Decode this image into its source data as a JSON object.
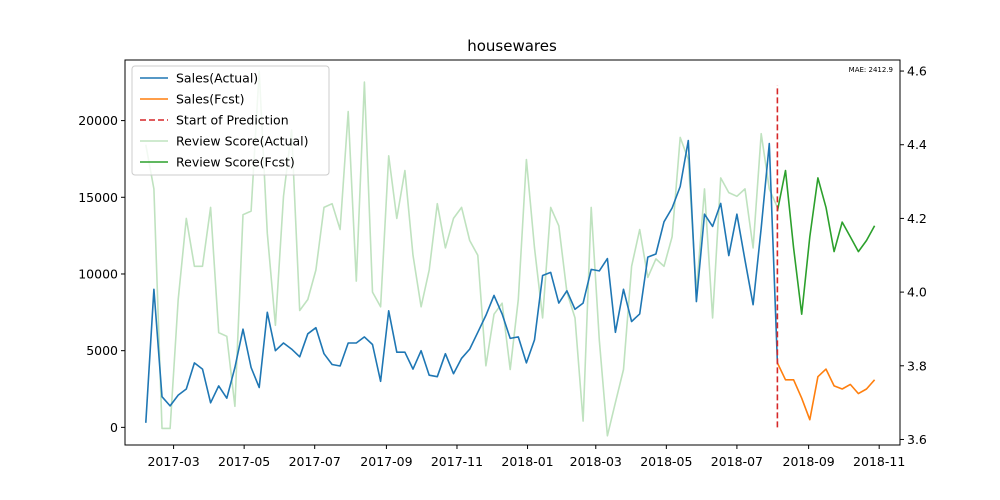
{
  "chart_data": {
    "type": "line",
    "title": "housewares",
    "annotation": "MAE: 2412.9",
    "x_tick_labels": [
      "2017-03",
      "2017-05",
      "2017-07",
      "2017-09",
      "2017-11",
      "2018-01",
      "2018-03",
      "2018-05",
      "2018-07",
      "2018-09",
      "2018-11"
    ],
    "x_tick_dates": [
      "2017-03-01",
      "2017-05-01",
      "2017-07-01",
      "2017-09-01",
      "2017-11-01",
      "2018-01-01",
      "2018-03-01",
      "2018-05-01",
      "2018-07-01",
      "2018-09-01",
      "2018-11-01"
    ],
    "xlim": [
      "2017-01-18",
      "2018-11-19"
    ],
    "y_left": {
      "ticks": [
        0,
        5000,
        10000,
        15000,
        20000
      ],
      "tick_labels": [
        "0",
        "5000",
        "10000",
        "15000",
        "20000"
      ],
      "ylim": [
        -1150,
        23950
      ]
    },
    "y_right": {
      "ticks": [
        3.6,
        3.8,
        4.0,
        4.2,
        4.4,
        4.6
      ],
      "tick_labels": [
        "3.6",
        "3.8",
        "4.0",
        "4.2",
        "4.4",
        "4.6"
      ],
      "ylim": [
        3.585,
        4.63
      ]
    },
    "prediction_start": "2018-08-05",
    "prediction_line_range": [
      0,
      22300
    ],
    "legend_placement": "upper-left",
    "series": [
      {
        "name": "Sales(Actual)",
        "axis": "left",
        "color": "#1f77b4",
        "width": 1.6,
        "opacity": 1,
        "points": [
          [
            "2017-02-05",
            300
          ],
          [
            "2017-02-12",
            9000
          ],
          [
            "2017-02-19",
            2000
          ],
          [
            "2017-02-26",
            1400
          ],
          [
            "2017-03-05",
            2100
          ],
          [
            "2017-03-12",
            2500
          ],
          [
            "2017-03-19",
            4200
          ],
          [
            "2017-03-26",
            3800
          ],
          [
            "2017-04-02",
            1600
          ],
          [
            "2017-04-09",
            2700
          ],
          [
            "2017-04-16",
            1900
          ],
          [
            "2017-04-23",
            3900
          ],
          [
            "2017-04-30",
            6400
          ],
          [
            "2017-05-07",
            3900
          ],
          [
            "2017-05-14",
            2600
          ],
          [
            "2017-05-21",
            7500
          ],
          [
            "2017-05-28",
            5000
          ],
          [
            "2017-06-04",
            5500
          ],
          [
            "2017-06-11",
            5100
          ],
          [
            "2017-06-18",
            4600
          ],
          [
            "2017-06-25",
            6100
          ],
          [
            "2017-07-02",
            6500
          ],
          [
            "2017-07-09",
            4800
          ],
          [
            "2017-07-16",
            4100
          ],
          [
            "2017-07-23",
            4000
          ],
          [
            "2017-07-30",
            5500
          ],
          [
            "2017-08-06",
            5500
          ],
          [
            "2017-08-13",
            5900
          ],
          [
            "2017-08-20",
            5400
          ],
          [
            "2017-08-27",
            3000
          ],
          [
            "2017-09-03",
            7600
          ],
          [
            "2017-09-10",
            4900
          ],
          [
            "2017-09-17",
            4900
          ],
          [
            "2017-09-24",
            3800
          ],
          [
            "2017-10-01",
            5000
          ],
          [
            "2017-10-08",
            3400
          ],
          [
            "2017-10-15",
            3300
          ],
          [
            "2017-10-22",
            4800
          ],
          [
            "2017-10-29",
            3500
          ],
          [
            "2017-11-05",
            4500
          ],
          [
            "2017-11-12",
            5100
          ],
          [
            "2017-11-19",
            6200
          ],
          [
            "2017-11-26",
            7300
          ],
          [
            "2017-12-03",
            8600
          ],
          [
            "2017-12-10",
            7400
          ],
          [
            "2017-12-17",
            5800
          ],
          [
            "2017-12-24",
            5900
          ],
          [
            "2017-12-31",
            4200
          ],
          [
            "2018-01-07",
            5700
          ],
          [
            "2018-01-14",
            9900
          ],
          [
            "2018-01-21",
            10100
          ],
          [
            "2018-01-28",
            8100
          ],
          [
            "2018-02-04",
            8900
          ],
          [
            "2018-02-11",
            7700
          ],
          [
            "2018-02-18",
            8100
          ],
          [
            "2018-02-25",
            10300
          ],
          [
            "2018-03-04",
            10200
          ],
          [
            "2018-03-11",
            11000
          ],
          [
            "2018-03-18",
            6200
          ],
          [
            "2018-03-25",
            9000
          ],
          [
            "2018-04-01",
            6900
          ],
          [
            "2018-04-08",
            7400
          ],
          [
            "2018-04-15",
            11100
          ],
          [
            "2018-04-22",
            11300
          ],
          [
            "2018-04-29",
            13400
          ],
          [
            "2018-05-06",
            14300
          ],
          [
            "2018-05-13",
            15700
          ],
          [
            "2018-05-20",
            18700
          ],
          [
            "2018-05-27",
            8200
          ],
          [
            "2018-06-03",
            13900
          ],
          [
            "2018-06-10",
            13100
          ],
          [
            "2018-06-17",
            14600
          ],
          [
            "2018-06-24",
            11200
          ],
          [
            "2018-07-01",
            13900
          ],
          [
            "2018-07-08",
            10900
          ],
          [
            "2018-07-15",
            8000
          ],
          [
            "2018-07-22",
            13000
          ],
          [
            "2018-07-29",
            18500
          ],
          [
            "2018-08-05",
            4200
          ]
        ]
      },
      {
        "name": "Sales(Fcst)",
        "axis": "left",
        "color": "#ff7f0e",
        "width": 1.6,
        "opacity": 1,
        "points": [
          [
            "2018-08-05",
            4200
          ],
          [
            "2018-08-12",
            3100
          ],
          [
            "2018-08-19",
            3100
          ],
          [
            "2018-08-26",
            1900
          ],
          [
            "2018-09-02",
            500
          ],
          [
            "2018-09-09",
            3300
          ],
          [
            "2018-09-16",
            3800
          ],
          [
            "2018-09-23",
            2700
          ],
          [
            "2018-09-30",
            2500
          ],
          [
            "2018-10-07",
            2800
          ],
          [
            "2018-10-14",
            2200
          ],
          [
            "2018-10-21",
            2500
          ],
          [
            "2018-10-28",
            3100
          ]
        ]
      },
      {
        "name": "Review Score(Actual)",
        "axis": "right",
        "color": "#2ca02c",
        "width": 1.6,
        "opacity": 0.3,
        "points": [
          [
            "2017-02-05",
            4.4
          ],
          [
            "2017-02-12",
            4.28
          ],
          [
            "2017-02-19",
            3.63
          ],
          [
            "2017-02-26",
            3.63
          ],
          [
            "2017-03-05",
            3.98
          ],
          [
            "2017-03-12",
            4.2
          ],
          [
            "2017-03-19",
            4.07
          ],
          [
            "2017-03-26",
            4.07
          ],
          [
            "2017-04-02",
            4.23
          ],
          [
            "2017-04-09",
            3.89
          ],
          [
            "2017-04-16",
            3.88
          ],
          [
            "2017-04-23",
            3.69
          ],
          [
            "2017-04-30",
            4.21
          ],
          [
            "2017-05-07",
            4.22
          ],
          [
            "2017-05-14",
            4.6
          ],
          [
            "2017-05-21",
            4.16
          ],
          [
            "2017-05-28",
            3.91
          ],
          [
            "2017-06-04",
            4.26
          ],
          [
            "2017-06-11",
            4.44
          ],
          [
            "2017-06-18",
            3.95
          ],
          [
            "2017-06-25",
            3.98
          ],
          [
            "2017-07-02",
            4.06
          ],
          [
            "2017-07-09",
            4.23
          ],
          [
            "2017-07-16",
            4.24
          ],
          [
            "2017-07-23",
            4.17
          ],
          [
            "2017-07-30",
            4.49
          ],
          [
            "2017-08-06",
            4.03
          ],
          [
            "2017-08-13",
            4.57
          ],
          [
            "2017-08-20",
            4.0
          ],
          [
            "2017-08-27",
            3.96
          ],
          [
            "2017-09-03",
            4.37
          ],
          [
            "2017-09-10",
            4.2
          ],
          [
            "2017-09-17",
            4.33
          ],
          [
            "2017-09-24",
            4.1
          ],
          [
            "2017-10-01",
            3.96
          ],
          [
            "2017-10-08",
            4.06
          ],
          [
            "2017-10-15",
            4.24
          ],
          [
            "2017-10-22",
            4.12
          ],
          [
            "2017-10-29",
            4.2
          ],
          [
            "2017-11-05",
            4.23
          ],
          [
            "2017-11-12",
            4.14
          ],
          [
            "2017-11-19",
            4.1
          ],
          [
            "2017-11-26",
            3.8
          ],
          [
            "2017-12-03",
            3.94
          ],
          [
            "2017-12-10",
            3.97
          ],
          [
            "2017-12-17",
            3.79
          ],
          [
            "2017-12-24",
            3.98
          ],
          [
            "2017-12-31",
            4.36
          ],
          [
            "2018-01-07",
            4.12
          ],
          [
            "2018-01-14",
            3.93
          ],
          [
            "2018-01-21",
            4.23
          ],
          [
            "2018-01-28",
            4.18
          ],
          [
            "2018-02-04",
            4.0
          ],
          [
            "2018-02-11",
            3.93
          ],
          [
            "2018-02-18",
            3.65
          ],
          [
            "2018-02-25",
            4.23
          ],
          [
            "2018-03-04",
            3.87
          ],
          [
            "2018-03-11",
            3.61
          ],
          [
            "2018-03-18",
            3.7
          ],
          [
            "2018-03-25",
            3.79
          ],
          [
            "2018-04-01",
            4.07
          ],
          [
            "2018-04-08",
            4.17
          ],
          [
            "2018-04-15",
            4.04
          ],
          [
            "2018-04-22",
            4.09
          ],
          [
            "2018-04-29",
            4.07
          ],
          [
            "2018-05-06",
            4.15
          ],
          [
            "2018-05-13",
            4.42
          ],
          [
            "2018-05-20",
            4.36
          ],
          [
            "2018-05-27",
            4.0
          ],
          [
            "2018-06-03",
            4.28
          ],
          [
            "2018-06-10",
            3.93
          ],
          [
            "2018-06-17",
            4.31
          ],
          [
            "2018-06-24",
            4.27
          ],
          [
            "2018-07-01",
            4.26
          ],
          [
            "2018-07-08",
            4.28
          ],
          [
            "2018-07-15",
            4.12
          ],
          [
            "2018-07-22",
            4.43
          ],
          [
            "2018-07-29",
            4.28
          ],
          [
            "2018-08-05",
            4.23
          ]
        ]
      },
      {
        "name": "Review Score(Fcst)",
        "axis": "right",
        "color": "#2ca02c",
        "width": 1.6,
        "opacity": 1,
        "points": [
          [
            "2018-08-05",
            4.22
          ],
          [
            "2018-08-12",
            4.33
          ],
          [
            "2018-08-19",
            4.12
          ],
          [
            "2018-08-26",
            3.94
          ],
          [
            "2018-09-02",
            4.15
          ],
          [
            "2018-09-09",
            4.31
          ],
          [
            "2018-09-16",
            4.23
          ],
          [
            "2018-09-23",
            4.11
          ],
          [
            "2018-09-30",
            4.19
          ],
          [
            "2018-10-07",
            4.15
          ],
          [
            "2018-10-14",
            4.11
          ],
          [
            "2018-10-21",
            4.14
          ],
          [
            "2018-10-28",
            4.18
          ]
        ]
      }
    ],
    "start_line": {
      "name": "Start of Prediction",
      "color": "#d62728",
      "style": "dashed"
    }
  }
}
